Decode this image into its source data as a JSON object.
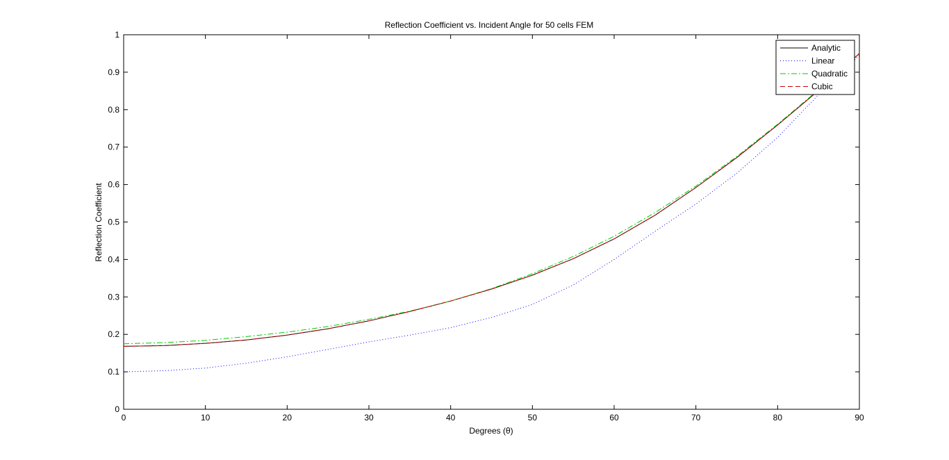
{
  "chart_data": {
    "type": "line",
    "title": "Reflection Coefficient vs. Incident Angle for 50 cells FEM",
    "xlabel": "Degrees (θ)",
    "ylabel": "Reflection Coefficient",
    "xlim": [
      0,
      90
    ],
    "ylim": [
      0,
      1
    ],
    "xticks": [
      0,
      10,
      20,
      30,
      40,
      50,
      60,
      70,
      80,
      90
    ],
    "yticks": [
      0,
      0.1,
      0.2,
      0.3,
      0.4,
      0.5,
      0.6,
      0.7,
      0.8,
      0.9,
      1
    ],
    "ytick_labels": [
      "0",
      "0.1",
      "0.2",
      "0.3",
      "0.4",
      "0.5",
      "0.6",
      "0.7",
      "0.8",
      "0.9",
      "1"
    ],
    "grid": false,
    "legend_position": "top-right",
    "series": [
      {
        "name": "Analytic",
        "color": "#000000",
        "style": "solid",
        "x": [
          0,
          5,
          10,
          15,
          20,
          25,
          30,
          35,
          40,
          45,
          50,
          55,
          60,
          65,
          70,
          75,
          80,
          85,
          90
        ],
        "y": [
          0.168,
          0.17,
          0.176,
          0.185,
          0.198,
          0.215,
          0.236,
          0.261,
          0.289,
          0.321,
          0.358,
          0.402,
          0.455,
          0.518,
          0.592,
          0.672,
          0.759,
          0.851,
          0.95
        ]
      },
      {
        "name": "Linear",
        "color": "#0000ff",
        "style": "dotted",
        "x": [
          0,
          5,
          10,
          15,
          20,
          25,
          30,
          35,
          40,
          45,
          50,
          55,
          60,
          65,
          70,
          75,
          80,
          85,
          90
        ],
        "y": [
          0.1,
          0.103,
          0.11,
          0.123,
          0.14,
          0.16,
          0.18,
          0.198,
          0.218,
          0.245,
          0.28,
          0.332,
          0.4,
          0.475,
          0.548,
          0.63,
          0.726,
          0.84,
          0.945
        ]
      },
      {
        "name": "Quadratic",
        "color": "#00cc00",
        "style": "dashdot",
        "x": [
          0,
          5,
          10,
          15,
          20,
          25,
          30,
          35,
          40,
          45,
          50,
          55,
          60,
          65,
          70,
          75,
          80,
          85,
          90
        ],
        "y": [
          0.175,
          0.178,
          0.184,
          0.194,
          0.206,
          0.221,
          0.24,
          0.262,
          0.289,
          0.322,
          0.362,
          0.408,
          0.462,
          0.525,
          0.596,
          0.675,
          0.761,
          0.853,
          0.951
        ]
      },
      {
        "name": "Cubic",
        "color": "#cc0000",
        "style": "dashed",
        "x": [
          0,
          5,
          10,
          15,
          20,
          25,
          30,
          35,
          40,
          45,
          50,
          55,
          60,
          65,
          70,
          75,
          80,
          85,
          90
        ],
        "y": [
          0.168,
          0.17,
          0.176,
          0.185,
          0.198,
          0.215,
          0.236,
          0.261,
          0.289,
          0.321,
          0.358,
          0.402,
          0.455,
          0.518,
          0.592,
          0.672,
          0.759,
          0.851,
          0.95
        ]
      }
    ]
  }
}
